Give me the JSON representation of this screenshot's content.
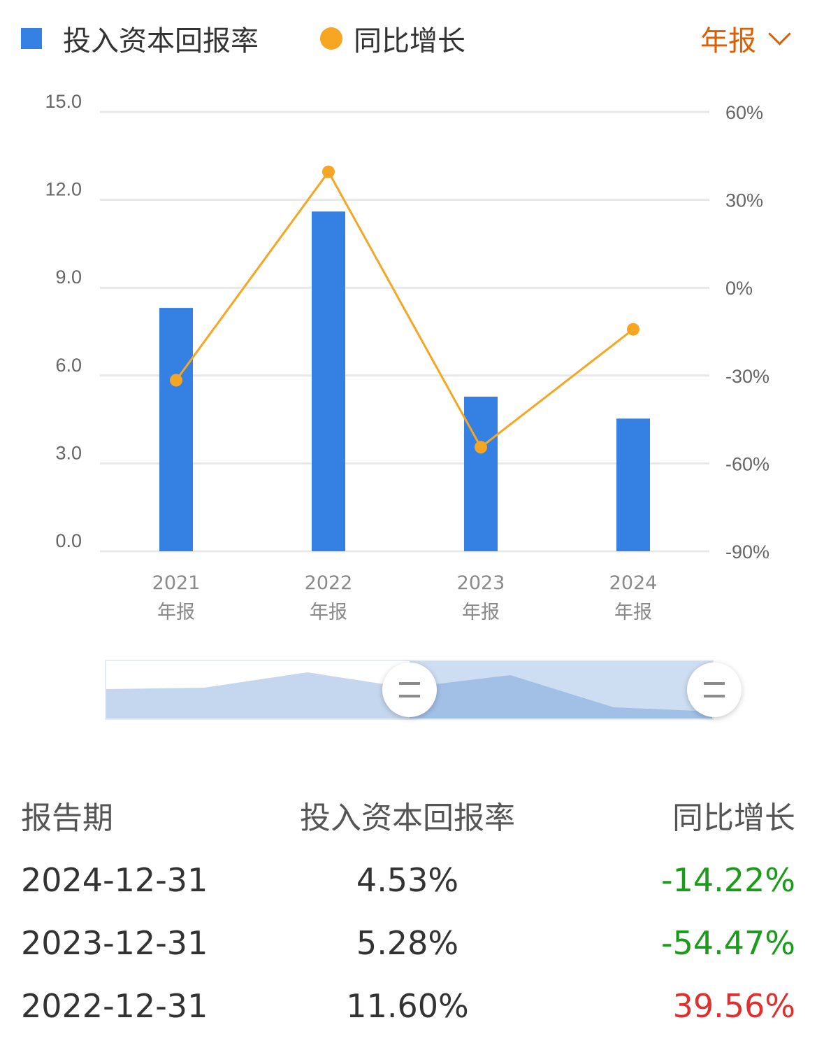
{
  "legend": {
    "roic_label": "投入资本回报率",
    "yoy_label": "同比增长",
    "period_label": "年报"
  },
  "colors": {
    "bar": "#3480e3",
    "line": "#f6a623",
    "select": "#dd5f00",
    "negative": "#1a9b1a",
    "positive": "#e02f2f",
    "grid": "#e8e8e8"
  },
  "chart_data": {
    "type": "bar",
    "categories": [
      "2021\n年报",
      "2022\n年报",
      "2023\n年报",
      "2024\n年报"
    ],
    "series": [
      {
        "name": "投入资本回报率",
        "type": "bar",
        "axis": "left",
        "values": [
          8.31,
          11.6,
          5.28,
          4.53
        ]
      },
      {
        "name": "同比增长",
        "type": "line",
        "axis": "right",
        "values": [
          -31.6,
          39.56,
          -54.47,
          -14.22
        ]
      }
    ],
    "y_left": {
      "ticks": [
        "0.0",
        "3.0",
        "6.0",
        "9.0",
        "12.0",
        "15.0"
      ],
      "ylim": [
        0,
        15
      ]
    },
    "y_right": {
      "ticks": [
        "-90%",
        "-60%",
        "-30%",
        "0%",
        "30%",
        "60%"
      ],
      "ylim": [
        -90,
        60
      ]
    },
    "grid": true,
    "legend_position": "top-left"
  },
  "table": {
    "headers": [
      "报告期",
      "投入资本回报率",
      "同比增长"
    ],
    "rows": [
      {
        "date": "2024-12-31",
        "roic": "4.53%",
        "yoy": "-14.22%",
        "yoy_sign": "negative"
      },
      {
        "date": "2023-12-31",
        "roic": "5.28%",
        "yoy": "-54.47%",
        "yoy_sign": "negative"
      },
      {
        "date": "2022-12-31",
        "roic": "11.60%",
        "yoy": "39.56%",
        "yoy_sign": "positive"
      }
    ]
  }
}
